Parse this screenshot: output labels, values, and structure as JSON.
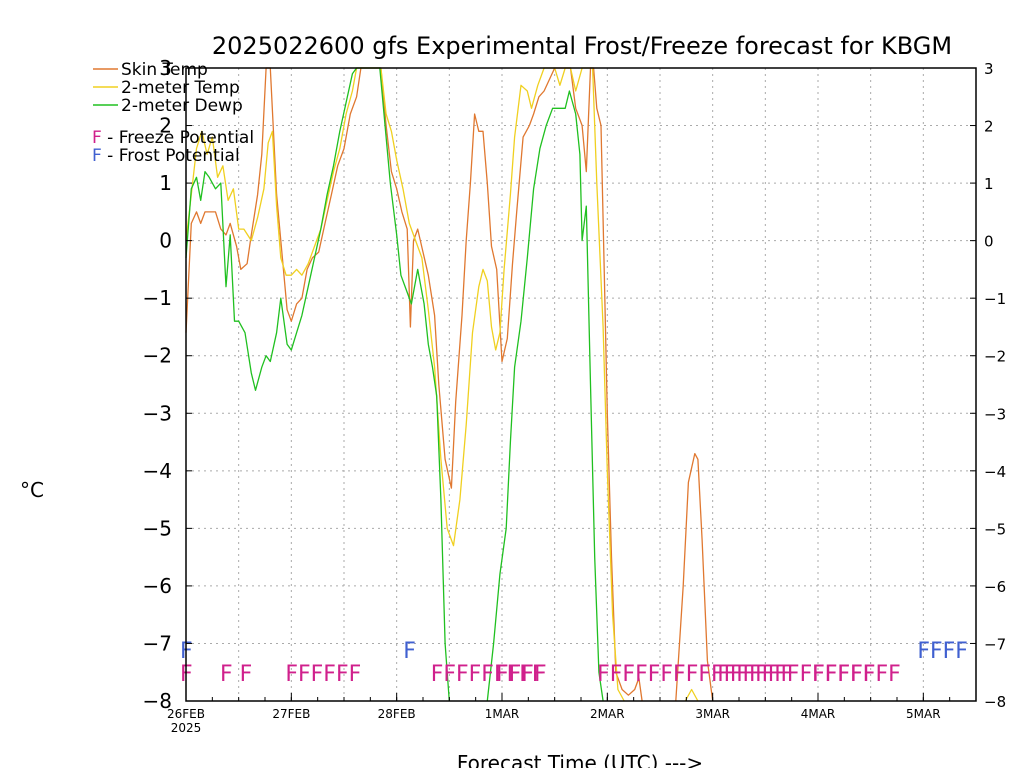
{
  "chart_data": {
    "type": "line",
    "title": "2025022600 gfs Experimental Frost/Freeze forecast for KBGM",
    "xlabel": "Forecast Time (UTC) --->",
    "ylabel": "°C",
    "ylim": [
      -8,
      3
    ],
    "xlim": [
      0,
      7.5
    ],
    "grid": true,
    "y_ticks": [
      -8,
      -7,
      -6,
      -5,
      -4,
      -3,
      -2,
      -1,
      0,
      1,
      2,
      3
    ],
    "x_ticks": [
      {
        "x": 0,
        "label": "26FEB",
        "sub": "2025"
      },
      {
        "x": 1,
        "label": "27FEB",
        "sub": ""
      },
      {
        "x": 2,
        "label": "28FEB",
        "sub": ""
      },
      {
        "x": 3,
        "label": "1MAR",
        "sub": ""
      },
      {
        "x": 4,
        "label": "2MAR",
        "sub": ""
      },
      {
        "x": 5,
        "label": "3MAR",
        "sub": ""
      },
      {
        "x": 6,
        "label": "4MAR",
        "sub": ""
      },
      {
        "x": 7,
        "label": "5MAR",
        "sub": ""
      }
    ],
    "legend": {
      "placement": "top-left",
      "entries": [
        {
          "label": "Skin Temp",
          "color": "#e07830"
        },
        {
          "label": "2-meter Temp",
          "color": "#f0d020"
        },
        {
          "label": "2-meter Dewp",
          "color": "#20c020"
        }
      ],
      "marker_entries": [
        {
          "symbol": "F",
          "text": " - Freeze Potential",
          "color": "#d0208c"
        },
        {
          "symbol": "F",
          "text": " - Frost Potential",
          "color": "#4060d0"
        }
      ]
    },
    "series": [
      {
        "name": "Skin Temp",
        "color": "#e07830",
        "points": [
          [
            0,
            -1.6
          ],
          [
            0.05,
            0.3
          ],
          [
            0.1,
            0.5
          ],
          [
            0.14,
            0.3
          ],
          [
            0.18,
            0.5
          ],
          [
            0.22,
            0.5
          ],
          [
            0.28,
            0.5
          ],
          [
            0.33,
            0.2
          ],
          [
            0.38,
            0.1
          ],
          [
            0.42,
            0.3
          ],
          [
            0.48,
            -0.1
          ],
          [
            0.52,
            -0.5
          ],
          [
            0.58,
            -0.4
          ],
          [
            0.62,
            0.1
          ],
          [
            0.68,
            0.8
          ],
          [
            0.72,
            1.5
          ],
          [
            0.76,
            3
          ],
          [
            0.8,
            3
          ],
          [
            0.86,
            0.8
          ],
          [
            0.9,
            0
          ],
          [
            0.96,
            -1.2
          ],
          [
            1.0,
            -1.4
          ],
          [
            1.05,
            -1.1
          ],
          [
            1.1,
            -1.0
          ],
          [
            1.15,
            -0.5
          ],
          [
            1.2,
            -0.3
          ],
          [
            1.26,
            -0.2
          ],
          [
            1.32,
            0.3
          ],
          [
            1.38,
            0.8
          ],
          [
            1.44,
            1.3
          ],
          [
            1.5,
            1.6
          ],
          [
            1.56,
            2.2
          ],
          [
            1.62,
            2.5
          ],
          [
            1.66,
            3
          ],
          [
            1.85,
            3
          ],
          [
            1.9,
            2
          ],
          [
            1.95,
            1.2
          ],
          [
            2.0,
            0.9
          ],
          [
            2.05,
            0.5
          ],
          [
            2.1,
            0.2
          ],
          [
            2.13,
            -1.5
          ],
          [
            2.16,
            0
          ],
          [
            2.2,
            0.2
          ],
          [
            2.25,
            -0.2
          ],
          [
            2.3,
            -0.6
          ],
          [
            2.36,
            -1.3
          ],
          [
            2.4,
            -2.5
          ],
          [
            2.46,
            -3.8
          ],
          [
            2.52,
            -4.3
          ],
          [
            2.56,
            -2.8
          ],
          [
            2.62,
            -1.3
          ],
          [
            2.66,
            0
          ],
          [
            2.7,
            1.0
          ],
          [
            2.74,
            2.2
          ],
          [
            2.78,
            1.9
          ],
          [
            2.82,
            1.9
          ],
          [
            2.86,
            1.0
          ],
          [
            2.9,
            -0.1
          ],
          [
            2.95,
            -0.5
          ],
          [
            3.0,
            -2.1
          ],
          [
            3.05,
            -1.7
          ],
          [
            3.1,
            -0.4
          ],
          [
            3.14,
            0.5
          ],
          [
            3.2,
            1.8
          ],
          [
            3.26,
            2.0
          ],
          [
            3.3,
            2.2
          ],
          [
            3.35,
            2.5
          ],
          [
            3.4,
            2.6
          ],
          [
            3.45,
            2.8
          ],
          [
            3.5,
            3
          ],
          [
            3.65,
            3
          ],
          [
            3.7,
            2.3
          ],
          [
            3.76,
            2
          ],
          [
            3.8,
            1.2
          ],
          [
            3.84,
            3
          ],
          [
            3.87,
            3
          ],
          [
            3.9,
            2.3
          ],
          [
            3.94,
            2.0
          ],
          [
            3.97,
            -0.5
          ],
          [
            4.0,
            -3
          ],
          [
            4.04,
            -5.5
          ],
          [
            4.08,
            -7.5
          ],
          [
            4.14,
            -7.8
          ],
          [
            4.2,
            -7.9
          ],
          [
            4.26,
            -7.8
          ],
          [
            4.3,
            -7.6
          ],
          [
            4.33,
            -8
          ]
        ]
      },
      {
        "name": "Skin Temp (3MAR spike)",
        "color": "#e07830",
        "points": [
          [
            4.65,
            -8
          ],
          [
            4.72,
            -6
          ],
          [
            4.77,
            -4.2
          ],
          [
            4.83,
            -3.7
          ],
          [
            4.86,
            -3.8
          ],
          [
            4.9,
            -5.2
          ],
          [
            4.95,
            -7.3
          ],
          [
            5.0,
            -8
          ]
        ]
      },
      {
        "name": "2-meter Temp",
        "color": "#f0d020",
        "points": [
          [
            0,
            0
          ],
          [
            0.05,
            0.8
          ],
          [
            0.1,
            1.6
          ],
          [
            0.15,
            1.9
          ],
          [
            0.2,
            1.5
          ],
          [
            0.25,
            1.8
          ],
          [
            0.3,
            1.1
          ],
          [
            0.35,
            1.3
          ],
          [
            0.4,
            0.7
          ],
          [
            0.45,
            0.9
          ],
          [
            0.5,
            0.2
          ],
          [
            0.55,
            0.2
          ],
          [
            0.62,
            0
          ],
          [
            0.68,
            0.4
          ],
          [
            0.74,
            0.9
          ],
          [
            0.78,
            1.7
          ],
          [
            0.82,
            1.9
          ],
          [
            0.86,
            0.6
          ],
          [
            0.9,
            -0.3
          ],
          [
            0.95,
            -0.6
          ],
          [
            1.0,
            -0.6
          ],
          [
            1.05,
            -0.5
          ],
          [
            1.1,
            -0.6
          ],
          [
            1.16,
            -0.4
          ],
          [
            1.22,
            -0.1
          ],
          [
            1.28,
            0.2
          ],
          [
            1.34,
            0.7
          ],
          [
            1.4,
            1.2
          ],
          [
            1.46,
            1.6
          ],
          [
            1.52,
            2.2
          ],
          [
            1.58,
            2.6
          ],
          [
            1.62,
            3
          ],
          [
            1.85,
            3
          ],
          [
            1.9,
            2.2
          ],
          [
            1.95,
            1.9
          ],
          [
            2.0,
            1.4
          ],
          [
            2.06,
            0.9
          ],
          [
            2.12,
            0.3
          ],
          [
            2.18,
            0
          ],
          [
            2.24,
            -0.3
          ],
          [
            2.3,
            -1.2
          ],
          [
            2.36,
            -2.2
          ],
          [
            2.42,
            -3.8
          ],
          [
            2.48,
            -5.0
          ],
          [
            2.54,
            -5.3
          ],
          [
            2.6,
            -4.5
          ],
          [
            2.66,
            -3.2
          ],
          [
            2.72,
            -1.6
          ],
          [
            2.78,
            -0.8
          ],
          [
            2.82,
            -0.5
          ],
          [
            2.86,
            -0.7
          ],
          [
            2.9,
            -1.5
          ],
          [
            2.94,
            -1.9
          ],
          [
            2.98,
            -1.6
          ],
          [
            3.02,
            -0.5
          ],
          [
            3.08,
            0.8
          ],
          [
            3.12,
            1.8
          ],
          [
            3.18,
            2.7
          ],
          [
            3.24,
            2.6
          ],
          [
            3.28,
            2.3
          ],
          [
            3.34,
            2.7
          ],
          [
            3.4,
            3
          ],
          [
            3.5,
            3
          ],
          [
            3.55,
            2.7
          ],
          [
            3.6,
            3
          ],
          [
            3.65,
            3
          ],
          [
            3.7,
            2.6
          ],
          [
            3.76,
            3
          ],
          [
            3.82,
            3
          ],
          [
            3.86,
            3
          ],
          [
            3.9,
            1.0
          ],
          [
            3.96,
            -1.5
          ],
          [
            4.0,
            -4.0
          ],
          [
            4.05,
            -6.5
          ],
          [
            4.1,
            -7.8
          ],
          [
            4.16,
            -8
          ]
        ]
      },
      {
        "name": "2-meter Temp (late)",
        "color": "#f0d020",
        "points": [
          [
            4.74,
            -8
          ],
          [
            4.8,
            -7.8
          ],
          [
            4.86,
            -8
          ]
        ]
      },
      {
        "name": "2-meter Dewp",
        "color": "#20c020",
        "points": [
          [
            0,
            -0.3
          ],
          [
            0.05,
            0.9
          ],
          [
            0.1,
            1.1
          ],
          [
            0.14,
            0.7
          ],
          [
            0.18,
            1.2
          ],
          [
            0.22,
            1.1
          ],
          [
            0.28,
            0.9
          ],
          [
            0.33,
            1.0
          ],
          [
            0.38,
            -0.8
          ],
          [
            0.42,
            0.1
          ],
          [
            0.46,
            -1.4
          ],
          [
            0.5,
            -1.4
          ],
          [
            0.56,
            -1.6
          ],
          [
            0.62,
            -2.3
          ],
          [
            0.66,
            -2.6
          ],
          [
            0.72,
            -2.2
          ],
          [
            0.76,
            -2.0
          ],
          [
            0.8,
            -2.1
          ],
          [
            0.86,
            -1.6
          ],
          [
            0.9,
            -1.0
          ],
          [
            0.96,
            -1.8
          ],
          [
            1.0,
            -1.9
          ],
          [
            1.05,
            -1.6
          ],
          [
            1.1,
            -1.3
          ],
          [
            1.16,
            -0.8
          ],
          [
            1.22,
            -0.3
          ],
          [
            1.28,
            0.2
          ],
          [
            1.34,
            0.8
          ],
          [
            1.4,
            1.3
          ],
          [
            1.46,
            1.9
          ],
          [
            1.52,
            2.4
          ],
          [
            1.58,
            2.9
          ],
          [
            1.62,
            3
          ],
          [
            1.84,
            3
          ],
          [
            1.88,
            2.2
          ],
          [
            1.94,
            1.0
          ],
          [
            2.0,
            0.1
          ],
          [
            2.04,
            -0.6
          ],
          [
            2.1,
            -0.9
          ],
          [
            2.14,
            -1.1
          ],
          [
            2.2,
            -0.5
          ],
          [
            2.26,
            -1.1
          ],
          [
            2.3,
            -1.8
          ],
          [
            2.34,
            -2.2
          ],
          [
            2.38,
            -2.7
          ],
          [
            2.42,
            -4.5
          ],
          [
            2.46,
            -7.0
          ],
          [
            2.5,
            -8
          ]
        ]
      },
      {
        "name": "2-meter Dewp (recovery)",
        "color": "#20c020",
        "points": [
          [
            2.86,
            -8
          ],
          [
            2.92,
            -7.0
          ],
          [
            2.98,
            -5.8
          ],
          [
            3.04,
            -5.0
          ],
          [
            3.08,
            -3.5
          ],
          [
            3.12,
            -2.2
          ],
          [
            3.18,
            -1.4
          ],
          [
            3.24,
            -0.3
          ],
          [
            3.3,
            0.9
          ],
          [
            3.36,
            1.6
          ],
          [
            3.42,
            2.0
          ],
          [
            3.48,
            2.3
          ],
          [
            3.54,
            2.3
          ],
          [
            3.6,
            2.3
          ],
          [
            3.64,
            2.6
          ],
          [
            3.7,
            2.2
          ],
          [
            3.74,
            1.5
          ],
          [
            3.76,
            0
          ],
          [
            3.8,
            0.6
          ],
          [
            3.84,
            -2.5
          ],
          [
            3.88,
            -5.5
          ],
          [
            3.92,
            -7.5
          ],
          [
            3.96,
            -8
          ]
        ]
      }
    ],
    "markers": [
      {
        "row": "frost",
        "x": 0.0,
        "symbol": "F",
        "color": "#4060d0"
      },
      {
        "row": "frost",
        "x": 2.12,
        "symbol": "F",
        "color": "#4060d0"
      },
      {
        "row": "frost",
        "x": 7.0,
        "symbol": "FFFF",
        "color": "#4060d0"
      },
      {
        "row": "freeze",
        "x": 0.0,
        "symbol": "F",
        "color": "#d0208c"
      },
      {
        "row": "freeze",
        "x": 0.38,
        "symbol": "F F",
        "color": "#d0208c"
      },
      {
        "row": "freeze",
        "x": 1.0,
        "symbol": "FFFFFF",
        "color": "#d0208c"
      },
      {
        "row": "freeze",
        "x": 2.38,
        "symbol": "FFFFFFFFF",
        "color": "#d0208c"
      },
      {
        "row": "freeze",
        "x": 3.0,
        "symbol": "FFFF",
        "color": "#d0208c"
      },
      {
        "row": "freeze",
        "x": 3.96,
        "symbol": "FFFFFFFFFFFFFFFFFFFFFFFF",
        "color": "#d0208c"
      },
      {
        "row": "freeze",
        "x": 5.1,
        "symbol": "FFFFFF",
        "color": "#d0208c"
      },
      {
        "row": "freeze",
        "x": 6.0,
        "symbol": "FFFFF",
        "color": "#d0208c"
      }
    ]
  }
}
